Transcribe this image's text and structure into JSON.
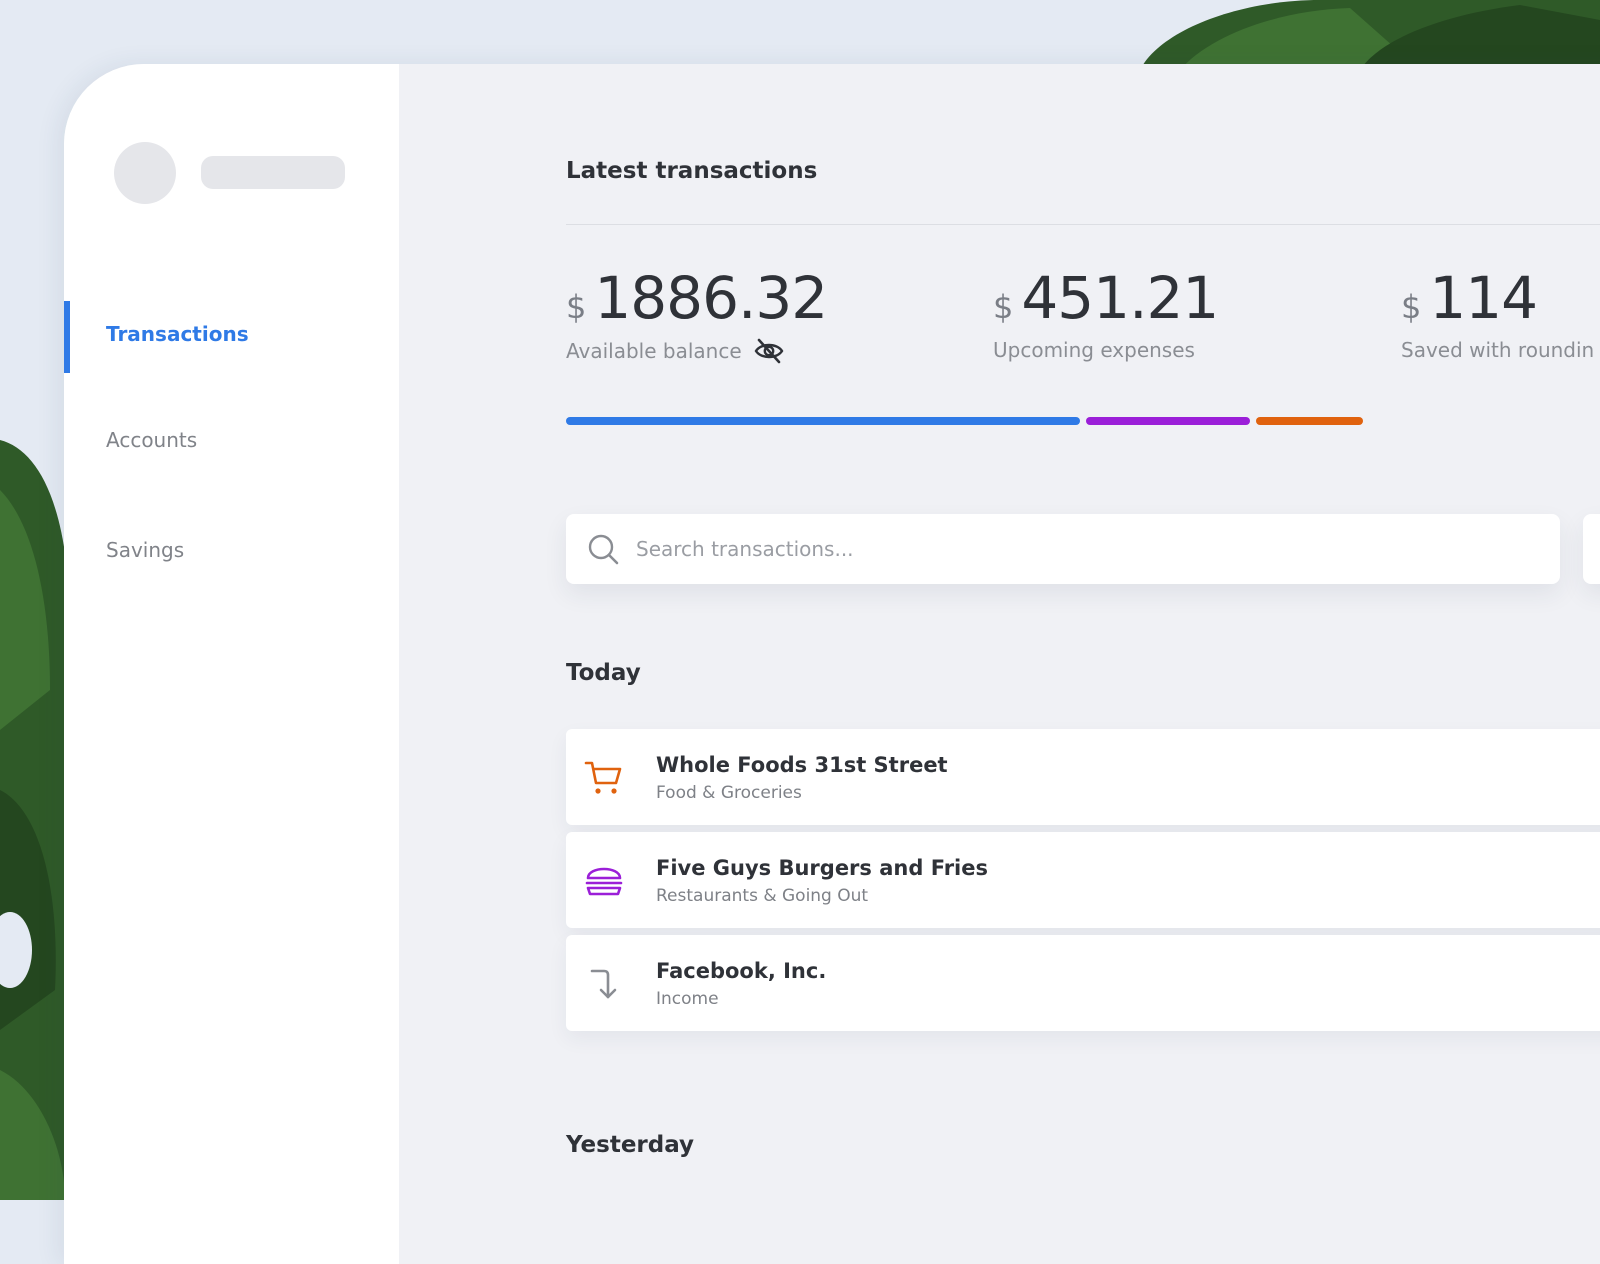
{
  "sidebar": {
    "nav": [
      {
        "label": "Transactions",
        "active": true
      },
      {
        "label": "Accounts",
        "active": false
      },
      {
        "label": "Savings",
        "active": false
      }
    ]
  },
  "main": {
    "title": "Latest transactions",
    "stats": [
      {
        "currency": "$",
        "value": "1886.32",
        "label": "Available balance",
        "icon": "eye-off-icon"
      },
      {
        "currency": "$",
        "value": "451.21",
        "label": "Upcoming expenses"
      },
      {
        "currency": "$",
        "value": "114",
        "label": "Saved with roundin"
      }
    ],
    "breakdown_bar": [
      {
        "name": "available-balance",
        "color": "#2f7ae6"
      },
      {
        "name": "upcoming-expenses",
        "color": "#9b1fd8"
      },
      {
        "name": "saved-with-rounding",
        "color": "#e0620e"
      }
    ],
    "search": {
      "placeholder": "Search transactions..."
    },
    "groups": [
      {
        "title": "Today",
        "transactions": [
          {
            "name": "Whole Foods 31st Street",
            "category": "Food & Groceries",
            "icon": "shopping-cart-icon",
            "color": "#e0620e"
          },
          {
            "name": "Five Guys Burgers and Fries",
            "category": "Restaurants & Going Out",
            "icon": "burger-icon",
            "color": "#9b1fd8"
          },
          {
            "name": "Facebook, Inc.",
            "category": "Income",
            "icon": "arrow-down-turn-icon",
            "color": "#8a8d93"
          }
        ]
      },
      {
        "title": "Yesterday",
        "transactions": []
      }
    ]
  }
}
